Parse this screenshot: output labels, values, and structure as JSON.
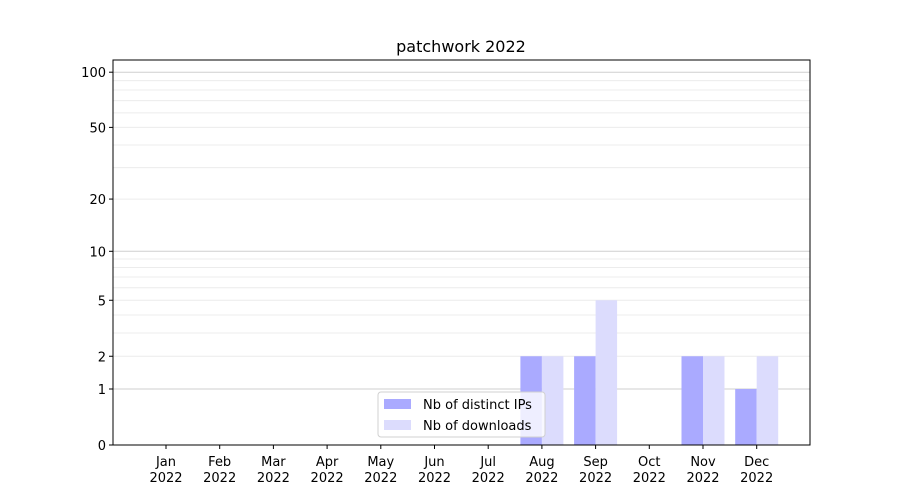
{
  "chart_data": {
    "type": "bar",
    "title": "patchwork 2022",
    "xlabel": "",
    "ylabel": "",
    "yscale": "symlog (log of 1+y)",
    "ylim": [
      0,
      116
    ],
    "yticks": [
      0,
      1,
      2,
      5,
      10,
      20,
      50,
      100
    ],
    "grid": true,
    "legend_position": "lower-center",
    "categories": [
      [
        "Jan",
        "2022"
      ],
      [
        "Feb",
        "2022"
      ],
      [
        "Mar",
        "2022"
      ],
      [
        "Apr",
        "2022"
      ],
      [
        "May",
        "2022"
      ],
      [
        "Jun",
        "2022"
      ],
      [
        "Jul",
        "2022"
      ],
      [
        "Aug",
        "2022"
      ],
      [
        "Sep",
        "2022"
      ],
      [
        "Oct",
        "2022"
      ],
      [
        "Nov",
        "2022"
      ],
      [
        "Dec",
        "2022"
      ]
    ],
    "series": [
      {
        "name": "Nb of distinct IPs",
        "color": "#aaaaff",
        "values": [
          0,
          0,
          0,
          0,
          0,
          0,
          0,
          2,
          2,
          0,
          2,
          1
        ]
      },
      {
        "name": "Nb of downloads",
        "color": "#dcdcfd",
        "values": [
          0,
          0,
          0,
          0,
          0,
          0,
          0,
          2,
          5,
          0,
          2,
          2
        ]
      }
    ]
  }
}
